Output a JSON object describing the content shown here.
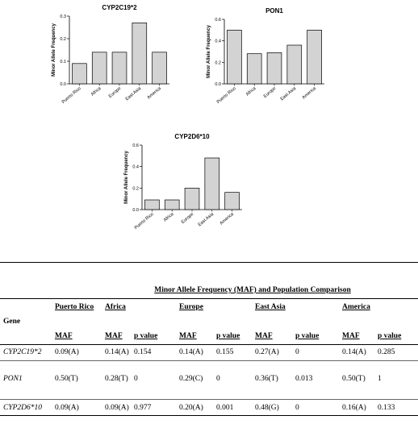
{
  "chart_data": [
    {
      "type": "bar",
      "title": "CYP2C19*2",
      "ylabel": "Minor Allele Frequency",
      "categories": [
        "Puerto Rico",
        "Africa",
        "Europe",
        "East Asia",
        "America"
      ],
      "values": [
        0.09,
        0.14,
        0.14,
        0.27,
        0.14
      ],
      "ylim": [
        0,
        0.3
      ],
      "yticks": [
        "0.0",
        "0.1",
        "0.2",
        "0.3"
      ],
      "ytick_values": [
        0,
        0.1,
        0.2,
        0.3
      ]
    },
    {
      "type": "bar",
      "title": "PON1",
      "ylabel": "Minor Allele Frequency",
      "categories": [
        "Puerto Rico",
        "Africa",
        "Europe",
        "East Asia",
        "America"
      ],
      "values": [
        0.5,
        0.28,
        0.29,
        0.36,
        0.5
      ],
      "ylim": [
        0,
        0.6
      ],
      "yticks": [
        "0.0",
        "0.2",
        "0.4",
        "0.6"
      ],
      "ytick_values": [
        0,
        0.2,
        0.4,
        0.6
      ]
    },
    {
      "type": "bar",
      "title": "CYP2D6*10",
      "ylabel": "Minor Allele Frequency",
      "categories": [
        "Puerto Rico",
        "Africa",
        "Europe",
        "East Asia",
        "America"
      ],
      "values": [
        0.09,
        0.09,
        0.2,
        0.48,
        0.16
      ],
      "ylim": [
        0,
        0.6
      ],
      "yticks": [
        "0.0",
        "0.2",
        "0.4",
        "0.6"
      ],
      "ytick_values": [
        0,
        0.2,
        0.4,
        0.6
      ]
    }
  ],
  "table": {
    "title": "Minor Allele Frequency (MAF) and Population Comparison",
    "gene_header": "Gene",
    "populations": [
      "Puerto Rico",
      "Africa",
      "Europe",
      "East Asia",
      "America"
    ],
    "sub_headers": [
      "MAF",
      "MAF",
      "p value",
      "MAF",
      "p value",
      "MAF",
      "p value",
      "MAF",
      "p value"
    ],
    "rows": [
      {
        "gene": "CYP2C19*2",
        "cells": [
          "0.09(A)",
          "0.14(A)",
          "0.154",
          "0.14(A)",
          "0.155",
          "0.27(A)",
          "0",
          "0.14(A)",
          "0.285"
        ]
      },
      {
        "gene": "PON1",
        "cells": [
          "0.50(T)",
          "0.28(T)",
          "0",
          "0.29(C)",
          "0",
          "0.36(T)",
          "0.013",
          "0.50(T)",
          "1"
        ]
      },
      {
        "gene": "CYP2D6*10",
        "cells": [
          "0.09(A)",
          "0.09(A)",
          "0.977",
          "0.20(A)",
          "0.001",
          "0.48(G)",
          "0",
          "0.16(A)",
          "0.133"
        ]
      }
    ]
  }
}
